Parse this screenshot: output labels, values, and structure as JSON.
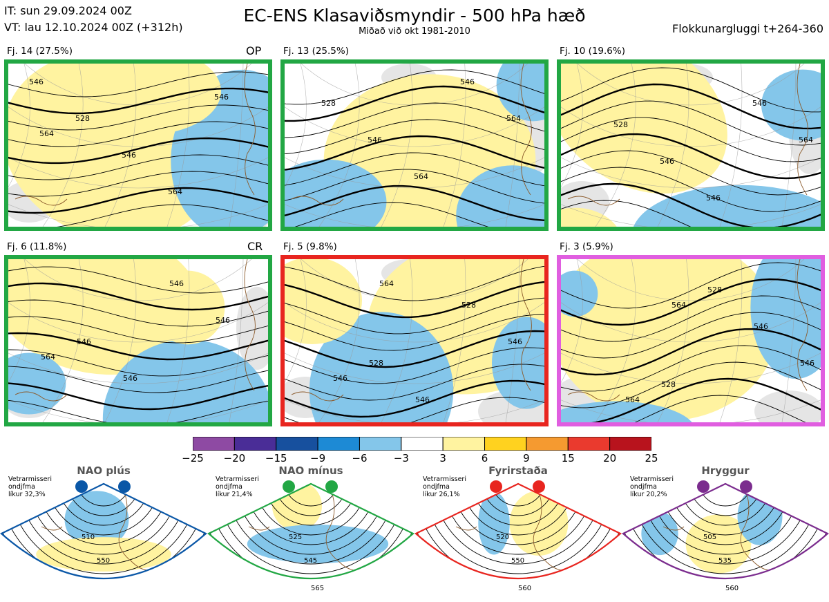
{
  "header": {
    "it": "IT: sun 29.09.2024 00Z",
    "vt": "VT: lau 12.10.2024 00Z  (+312h)",
    "title": "EC-ENS Klasaviðsmyndir - 500 hPa hæð",
    "subtitle": "Miðað við okt 1981-2010",
    "window": "Flokkunargluggi t+264-360"
  },
  "panels": [
    {
      "label": "Fj. 14 (27.5%)",
      "tag": "OP",
      "border": "#22a744",
      "contours": [
        "546",
        "528",
        "546",
        "564",
        "546",
        "564"
      ]
    },
    {
      "label": "Fj. 13 (25.5%)",
      "tag": "",
      "border": "#22a744",
      "contours": [
        "528",
        "546",
        "564",
        "546",
        "564"
      ]
    },
    {
      "label": "Fj. 10 (19.6%)",
      "tag": "",
      "border": "#22a744",
      "contours": [
        "528",
        "546",
        "546",
        "546",
        "564"
      ]
    },
    {
      "label": "Fj. 6 (11.8%)",
      "tag": "CR",
      "border": "#22a744",
      "contours": [
        "546",
        "546",
        "546",
        "546",
        "564"
      ]
    },
    {
      "label": "Fj. 5 (9.8%)",
      "tag": "",
      "border": "#e8251f",
      "contours": [
        "528",
        "546",
        "528",
        "546",
        "546",
        "564"
      ]
    },
    {
      "label": "Fj. 3 (5.9%)",
      "tag": "",
      "border": "#e05ee0",
      "contours": [
        "528",
        "528",
        "546",
        "546",
        "564",
        "564"
      ]
    }
  ],
  "colorbar": {
    "ticks": [
      "−25",
      "−20",
      "−15",
      "−9",
      "−6",
      "−3",
      "3",
      "6",
      "9",
      "15",
      "20",
      "25"
    ],
    "colors": [
      "#8e4aa3",
      "#4a2d97",
      "#17509e",
      "#1d8ad5",
      "#84c6ea",
      "#ffffff",
      "#fff3a0",
      "#ffd21f",
      "#f59a30",
      "#ea3a2e",
      "#b8131d"
    ]
  },
  "regimes": [
    {
      "name": "NAO plús",
      "note": [
        "Vetrarmisseri",
        "ondjfma",
        "líkur 32,3%"
      ],
      "color": "#0a57a7",
      "contours": [
        "510",
        "550"
      ]
    },
    {
      "name": "NAO mínus",
      "note": [
        "Vetrarmisseri",
        "ondjfma",
        "líkur 21,4%"
      ],
      "color": "#22a744",
      "contours": [
        "525",
        "545",
        "565"
      ]
    },
    {
      "name": "Fyrirstaða",
      "note": [
        "Vetrarmisseri",
        "ondjfma",
        "líkur 26,1%"
      ],
      "color": "#e8251f",
      "contours": [
        "520",
        "550",
        "560"
      ]
    },
    {
      "name": "Hryggur",
      "note": [
        "Vetrarmisseri",
        "ondjfma",
        "líkur 20,2%"
      ],
      "color": "#7b2c8e",
      "contours": [
        "505",
        "535",
        "560"
      ]
    }
  ]
}
